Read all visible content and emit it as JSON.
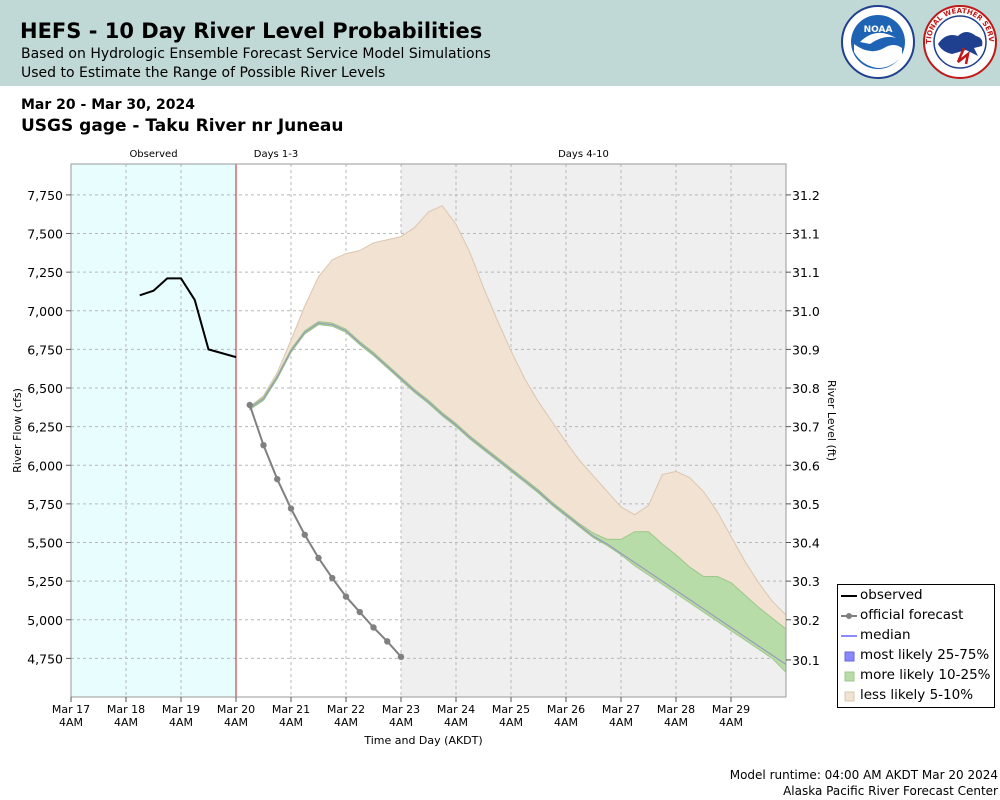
{
  "header": {
    "title": "HEFS - 10 Day River Level Probabilities",
    "subtitle1": "Based on Hydrologic Ensemble Forecast Service Model Simulations",
    "subtitle2": "Used to Estimate the Range of Possible River Levels",
    "noaa_logo": "NOAA",
    "nws_logo": "NATIONAL WEATHER SERVICE",
    "background_color": "#c0d8d6"
  },
  "date_range": "Mar 20 - Mar 30, 2024",
  "station": "USGS gage - Taku River nr Juneau",
  "footer": {
    "runtime": "Model runtime: 04:00 AM AKDT Mar 20 2024",
    "center": "Alaska Pacific River Forecast Center"
  },
  "legend": {
    "items": [
      {
        "label": "observed",
        "color": "#000000",
        "kind": "line"
      },
      {
        "label": "official forecast",
        "color": "#808080",
        "kind": "line-dot"
      },
      {
        "label": "median",
        "color": "#8a8aff",
        "kind": "line"
      },
      {
        "label": "most likely 25-75%",
        "color": "#8888ff",
        "kind": "box"
      },
      {
        "label": "more likely 10-25%",
        "color": "#b8dca8",
        "kind": "box"
      },
      {
        "label": "less likely 5-10%",
        "color": "#f1e2d2",
        "kind": "box"
      }
    ]
  },
  "chart_data": {
    "type": "line",
    "xlabel": "Time and Day (AKDT)",
    "ylabel": "River Flow (cfs)",
    "y2label": "River Level (ft)",
    "xlim_days": [
      0,
      13
    ],
    "ylim": [
      4500,
      7950
    ],
    "region_labels": [
      "Observed",
      "Days 1-3",
      "Days 4-10"
    ],
    "regions": [
      {
        "name": "Observed",
        "start": 0,
        "end": 3,
        "color": "#e8fdfd"
      },
      {
        "name": "Days 1-3",
        "start": 3,
        "end": 6,
        "color": "#ffffff"
      },
      {
        "name": "Days 4-10",
        "start": 6,
        "end": 13,
        "color": "#efefef"
      }
    ],
    "forecast_start_day": 3,
    "x_tick_days": [
      0,
      1,
      2,
      3,
      4,
      5,
      6,
      7,
      8,
      9,
      10,
      11,
      12
    ],
    "x_tick_labels": [
      [
        "Mar 17",
        "4AM"
      ],
      [
        "Mar 18",
        "4AM"
      ],
      [
        "Mar 19",
        "4AM"
      ],
      [
        "Mar 20",
        "4AM"
      ],
      [
        "Mar 21",
        "4AM"
      ],
      [
        "Mar 22",
        "4AM"
      ],
      [
        "Mar 23",
        "4AM"
      ],
      [
        "Mar 24",
        "4AM"
      ],
      [
        "Mar 25",
        "4AM"
      ],
      [
        "Mar 26",
        "4AM"
      ],
      [
        "Mar 27",
        "4AM"
      ],
      [
        "Mar 28",
        "4AM"
      ],
      [
        "Mar 29",
        "4AM"
      ]
    ],
    "y_ticks": [
      4750,
      5000,
      5250,
      5500,
      5750,
      6000,
      6250,
      6500,
      6750,
      7000,
      7250,
      7500,
      7750
    ],
    "y_tick_labels": [
      "4,750",
      "5,000",
      "5,250",
      "5,500",
      "5,750",
      "6,000",
      "6,250",
      "6,500",
      "6,750",
      "7,000",
      "7,250",
      "7,500",
      "7,750"
    ],
    "y2_ticks": [
      {
        "flow": 4740,
        "label": "30.1"
      },
      {
        "flow": 5000,
        "label": "30.2"
      },
      {
        "flow": 5250,
        "label": "30.3"
      },
      {
        "flow": 5500,
        "label": "30.4"
      },
      {
        "flow": 5750,
        "label": "30.5"
      },
      {
        "flow": 6000,
        "label": "30.6"
      },
      {
        "flow": 6250,
        "label": "30.7"
      },
      {
        "flow": 6500,
        "label": "30.8"
      },
      {
        "flow": 6750,
        "label": "30.9"
      },
      {
        "flow": 7000,
        "label": "31.0"
      },
      {
        "flow": 7250,
        "label": "31.1"
      },
      {
        "flow": 7500,
        "label": "31.1"
      },
      {
        "flow": 7750,
        "label": "31.2"
      }
    ],
    "series": [
      {
        "name": "observed",
        "color": "#000000",
        "x": [
          1.25,
          1.5,
          1.75,
          2.0,
          2.25,
          2.5,
          3.0
        ],
        "y": [
          7100,
          7130,
          7210,
          7210,
          7070,
          6750,
          6700
        ]
      },
      {
        "name": "official forecast",
        "color": "#808080",
        "x": [
          3.25,
          3.5,
          3.75,
          4.0,
          4.25,
          4.5,
          4.75,
          5.0,
          5.25,
          5.5,
          5.75,
          6.0
        ],
        "y": [
          6390,
          6130,
          5910,
          5720,
          5550,
          5400,
          5270,
          5150,
          5050,
          4950,
          4860,
          4760
        ]
      },
      {
        "name": "less likely 5-10% (upper)",
        "color": "#f1e2d2",
        "x": [
          3.25,
          3.5,
          3.75,
          4.0,
          4.25,
          4.5,
          4.75,
          5.0,
          5.25,
          5.5,
          5.75,
          6.0,
          6.25,
          6.5,
          6.75,
          7.0,
          7.25,
          7.5,
          7.75,
          8.0,
          8.25,
          8.5,
          8.75,
          9.0,
          9.25,
          9.5,
          9.75,
          10.0,
          10.25,
          10.5,
          10.75,
          11.0,
          11.25,
          11.5,
          11.75,
          12.0,
          12.25,
          12.5,
          12.75,
          13.0
        ],
        "y": [
          6380,
          6450,
          6600,
          6810,
          7030,
          7220,
          7330,
          7370,
          7390,
          7440,
          7460,
          7480,
          7540,
          7640,
          7680,
          7560,
          7380,
          7150,
          6940,
          6740,
          6560,
          6410,
          6280,
          6150,
          6030,
          5930,
          5830,
          5730,
          5680,
          5740,
          5940,
          5960,
          5920,
          5830,
          5700,
          5540,
          5380,
          5240,
          5120,
          5030
        ]
      },
      {
        "name": "more likely 10-25% (upper)",
        "color": "#b8dca8",
        "x": [
          3.25,
          3.5,
          3.75,
          4.0,
          4.25,
          4.5,
          4.75,
          5.0,
          5.25,
          5.5,
          5.75,
          6.0,
          6.25,
          6.5,
          6.75,
          7.0,
          7.25,
          7.5,
          7.75,
          8.0,
          8.25,
          8.5,
          8.75,
          9.0,
          9.25,
          9.5,
          9.75,
          10.0,
          10.25,
          10.5,
          10.75,
          11.0,
          11.25,
          11.5,
          11.75,
          12.0,
          12.25,
          12.5,
          12.75,
          13.0
        ],
        "y": [
          6380,
          6440,
          6580,
          6750,
          6870,
          6930,
          6920,
          6880,
          6800,
          6730,
          6650,
          6570,
          6490,
          6420,
          6340,
          6270,
          6190,
          6120,
          6050,
          5980,
          5910,
          5840,
          5760,
          5690,
          5620,
          5560,
          5520,
          5520,
          5570,
          5570,
          5490,
          5420,
          5340,
          5280,
          5280,
          5240,
          5160,
          5080,
          5010,
          4940
        ]
      },
      {
        "name": "median",
        "color": "#8a8aff",
        "x": [
          3.25,
          3.5,
          3.75,
          4.0,
          4.25,
          4.5,
          4.75,
          5.0,
          5.25,
          5.5,
          5.75,
          6.0,
          6.25,
          6.5,
          6.75,
          7.0,
          7.25,
          7.5,
          7.75,
          8.0,
          8.25,
          8.5,
          8.75,
          9.0,
          9.25,
          9.5,
          9.75,
          10.0,
          10.25,
          10.5,
          10.75,
          11.0,
          11.25,
          11.5,
          11.75,
          12.0,
          12.25,
          12.5,
          12.75,
          13.0
        ],
        "y": [
          6370,
          6430,
          6570,
          6740,
          6860,
          6920,
          6910,
          6870,
          6790,
          6720,
          6640,
          6560,
          6480,
          6410,
          6330,
          6260,
          6180,
          6110,
          6040,
          5970,
          5900,
          5830,
          5750,
          5680,
          5610,
          5540,
          5490,
          5430,
          5370,
          5310,
          5250,
          5190,
          5130,
          5070,
          5010,
          4950,
          4890,
          4830,
          4770,
          4710
        ]
      },
      {
        "name": "lower bound 5%",
        "color": "#b8dca8",
        "x": [
          3.25,
          3.5,
          3.75,
          4.0,
          4.25,
          4.5,
          4.75,
          5.0,
          5.25,
          5.5,
          5.75,
          6.0,
          6.25,
          6.5,
          6.75,
          7.0,
          7.25,
          7.5,
          7.75,
          8.0,
          8.25,
          8.5,
          8.75,
          9.0,
          9.25,
          9.5,
          9.75,
          10.0,
          10.25,
          10.5,
          10.75,
          11.0,
          11.25,
          11.5,
          11.75,
          12.0,
          12.25,
          12.5,
          12.75,
          13.0
        ],
        "y": [
          6360,
          6420,
          6560,
          6730,
          6850,
          6910,
          6900,
          6860,
          6780,
          6710,
          6630,
          6550,
          6470,
          6400,
          6320,
          6250,
          6170,
          6100,
          6030,
          5960,
          5890,
          5820,
          5740,
          5670,
          5600,
          5530,
          5480,
          5420,
          5350,
          5290,
          5230,
          5170,
          5110,
          5050,
          4990,
          4930,
          4870,
          4810,
          4750,
          4660
        ]
      }
    ]
  }
}
